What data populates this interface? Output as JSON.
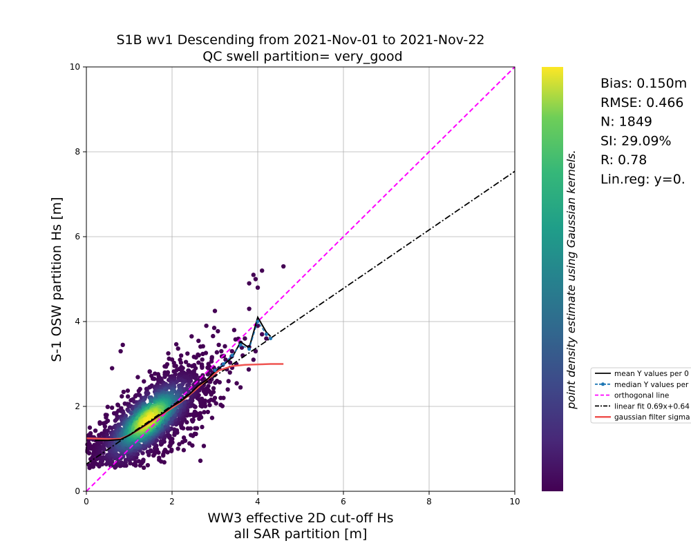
{
  "chart_data": {
    "type": "scatter",
    "title_line1": "S1B wv1 Descending from 2021-Nov-01 to 2021-Nov-22",
    "title_line2": "QC swell partition= very_good",
    "xlabel_line1": "WW3 effective 2D cut-off Hs",
    "xlabel_line2": "all SAR partition [m]",
    "ylabel": "S-1 OSW partition Hs [m]",
    "xlim": [
      0,
      10
    ],
    "ylim": [
      0,
      10
    ],
    "x_ticks": [
      0,
      2,
      4,
      6,
      8,
      10
    ],
    "y_ticks": [
      0,
      2,
      4,
      6,
      8,
      10
    ],
    "grid": true,
    "colormap": "viridis",
    "colorbar_label": "point density estimate using Gaussian kernels.",
    "stats": [
      "Bias: 0.150m",
      "RMSE: 0.466",
      "N: 1849",
      "SI: 29.09%",
      "R: 0.78",
      "Lin.reg: y=0."
    ],
    "legend_position": "right",
    "legend": [
      {
        "label": "mean Y values per 0",
        "color": "#000000",
        "style": "solid"
      },
      {
        "label": "median Y values per",
        "color": "#1f77b4",
        "style": "dash-dot-marker"
      },
      {
        "label": "orthogonal line",
        "color": "#ff00ff",
        "style": "dashed"
      },
      {
        "label": "linear fit 0.69x+0.64",
        "color": "#000000",
        "style": "dashdot"
      },
      {
        "label": "gaussian filter sigma",
        "color": "#ef5350",
        "style": "solid-thick"
      }
    ],
    "orthogonal_line": {
      "x": [
        0,
        10
      ],
      "y": [
        0,
        10
      ]
    },
    "linear_fit": {
      "slope": 0.69,
      "intercept": 0.64,
      "x": [
        0,
        10
      ]
    },
    "mean_curve": {
      "x": [
        0.2,
        0.5,
        0.8,
        1.0,
        1.2,
        1.4,
        1.6,
        1.8,
        2.0,
        2.2,
        2.4,
        2.6,
        2.8,
        3.0,
        3.2,
        3.4,
        3.6,
        3.8,
        4.0,
        4.2,
        4.3
      ],
      "y": [
        1.2,
        1.2,
        1.22,
        1.32,
        1.45,
        1.58,
        1.72,
        1.85,
        2.0,
        2.12,
        2.28,
        2.48,
        2.62,
        2.82,
        2.98,
        3.15,
        3.52,
        3.38,
        4.1,
        3.75,
        3.65
      ]
    },
    "median_curve": {
      "x": [
        3.0,
        3.2,
        3.4,
        3.6,
        3.8,
        4.0,
        4.2,
        4.3
      ],
      "y": [
        2.85,
        3.0,
        3.2,
        3.45,
        3.35,
        4.0,
        3.7,
        3.6
      ]
    },
    "gaussian_filter": {
      "x": [
        0.0,
        0.3,
        0.6,
        0.8,
        1.0,
        1.3,
        1.6,
        1.9,
        2.2,
        2.5,
        2.8,
        3.1,
        3.4,
        3.7,
        4.0,
        4.3,
        4.6
      ],
      "y": [
        1.25,
        1.24,
        1.23,
        1.24,
        1.32,
        1.5,
        1.7,
        1.9,
        2.1,
        2.35,
        2.62,
        2.85,
        2.95,
        2.98,
        2.99,
        3.0,
        3.0
      ]
    },
    "scatter_points": {
      "n": 1849,
      "x": [
        0.05,
        0.12,
        0.2,
        0.3,
        0.4,
        0.55,
        0.7,
        0.85,
        1.0,
        1.15,
        1.3,
        1.45,
        1.6,
        1.75,
        1.9,
        2.05,
        2.2,
        2.35,
        2.5,
        2.65,
        2.8,
        2.95,
        3.1,
        3.25,
        3.4,
        3.6,
        3.8,
        4.0,
        4.2,
        0.08,
        0.25,
        0.45,
        0.6,
        0.75,
        0.9,
        1.05,
        1.2,
        1.35,
        1.5,
        1.65,
        1.8,
        1.95,
        2.1,
        2.25,
        2.4,
        2.55,
        2.7,
        2.85,
        3.0,
        3.15,
        3.3,
        3.5,
        3.7,
        3.9,
        4.1,
        0.35,
        0.65,
        0.95,
        1.25,
        1.55,
        1.85,
        2.15,
        2.45,
        2.75,
        3.05,
        3.35,
        3.65,
        3.95,
        1.1,
        1.4,
        1.7,
        2.0,
        2.3,
        2.6,
        1.3,
        1.5,
        1.7,
        1.9,
        1.2,
        1.6,
        3.9,
        4.0,
        4.1,
        4.6,
        3.8,
        3.8,
        3.95,
        0.8,
        0.85,
        3.0,
        3.2,
        0.6,
        2.8,
        3.45
      ],
      "y": [
        1.2,
        1.05,
        0.9,
        1.3,
        1.6,
        1.1,
        1.4,
        1.2,
        1.5,
        1.3,
        1.6,
        1.4,
        1.7,
        1.5,
        1.8,
        1.9,
        2.1,
        2.0,
        2.3,
        2.5,
        2.6,
        2.8,
        2.9,
        3.1,
        3.3,
        3.5,
        3.4,
        3.9,
        3.6,
        1.5,
        0.8,
        1.8,
        0.7,
        1.9,
        0.9,
        2.0,
        1.1,
        2.2,
        1.2,
        2.4,
        1.3,
        2.5,
        1.6,
        2.6,
        1.8,
        2.9,
        2.0,
        3.0,
        2.2,
        3.3,
        2.4,
        3.0,
        3.6,
        3.1,
        3.7,
        1.0,
        1.0,
        1.3,
        1.2,
        1.5,
        1.6,
        1.8,
        2.1,
        2.4,
        2.6,
        2.8,
        3.2,
        3.3,
        1.4,
        1.5,
        1.6,
        1.9,
        2.1,
        2.2,
        1.4,
        1.45,
        1.55,
        1.7,
        1.35,
        1.6,
        5.1,
        4.8,
        5.2,
        5.3,
        4.9,
        4.3,
        5.0,
        3.3,
        3.45,
        4.25,
        2.2,
        2.9,
        3.9,
        3.8
      ]
    }
  }
}
